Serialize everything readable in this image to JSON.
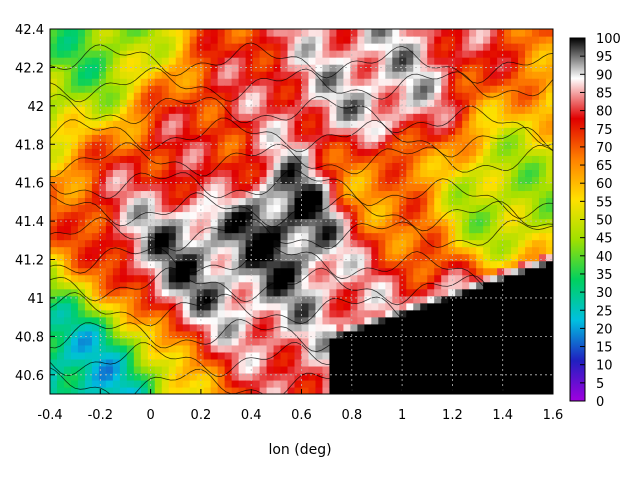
{
  "chart_data": {
    "type": "heatmap",
    "title": "",
    "xlabel": "lon (deg)",
    "ylabel": "",
    "xlim": [
      -0.4,
      1.6
    ],
    "ylim": [
      40.5,
      42.4
    ],
    "x_ticks": [
      "-0.4",
      "-0.2",
      "0",
      "0.2",
      "0.4",
      "0.6",
      "0.8",
      "1",
      "1.2",
      "1.4",
      "1.6"
    ],
    "y_ticks": [
      "40.6",
      "40.8",
      "41",
      "41.2",
      "41.4",
      "41.6",
      "41.8",
      "42",
      "42.2",
      "42.4"
    ],
    "colorbar_range": [
      0,
      100
    ],
    "colorbar_ticks": [
      "0",
      "5",
      "10",
      "15",
      "20",
      "25",
      "30",
      "35",
      "40",
      "45",
      "50",
      "55",
      "60",
      "65",
      "70",
      "75",
      "80",
      "85",
      "90",
      "95",
      "100"
    ],
    "grid": true,
    "contours": true,
    "colormap": [
      "#a000e0",
      "#2020c0",
      "#00c0e0",
      "#00d060",
      "#a0e000",
      "#ffe000",
      "#ff8000",
      "#e00000",
      "#ffffff",
      "#000000"
    ],
    "description_regions": [
      {
        "lon": 0.55,
        "lat": 41.42,
        "value": 100
      },
      {
        "lon": 0.2,
        "lat": 41.28,
        "value": 95
      },
      {
        "lon": 1.35,
        "lat": 40.75,
        "value": 100
      },
      {
        "lon": -0.3,
        "lat": 42.35,
        "value": 40
      },
      {
        "lon": -0.3,
        "lat": 40.55,
        "value": 25
      },
      {
        "lon": 0.25,
        "lat": 41.7,
        "value": 75
      },
      {
        "lon": 0.9,
        "lat": 41.6,
        "value": 65
      },
      {
        "lon": 1.4,
        "lat": 41.5,
        "value": 45
      },
      {
        "lon": 0.9,
        "lat": 42.05,
        "value": 90
      }
    ]
  }
}
